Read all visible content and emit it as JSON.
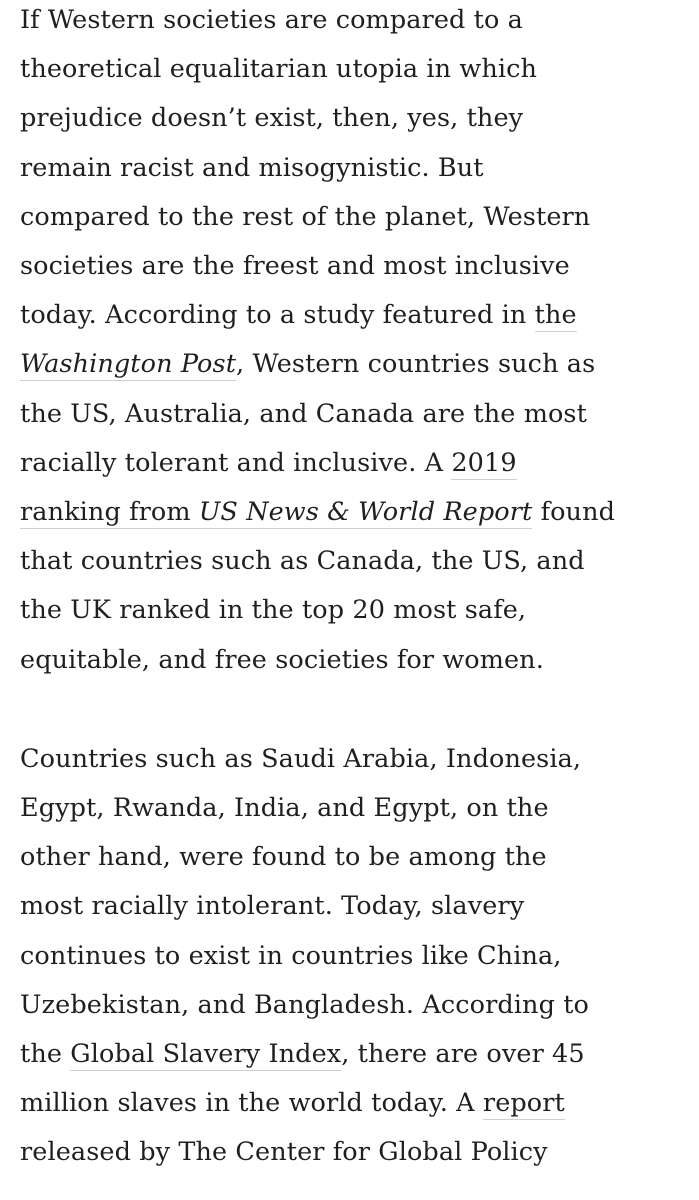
{
  "paragraphs": [
    {
      "lines": [
        [
          {
            "text": "If Western societies are compared to a"
          }
        ],
        [
          {
            "text": "theoretical equalitarian utopia in which"
          }
        ],
        [
          {
            "text": "prejudice doesn’t exist, then, yes, they"
          }
        ],
        [
          {
            "text": "remain racist and misogynistic. But"
          }
        ],
        [
          {
            "text": "compared to the rest of the planet, Western"
          }
        ],
        [
          {
            "text": "societies are the freest and most inclusive"
          }
        ],
        [
          {
            "text": "today. According to a study featured in "
          },
          {
            "text": "the",
            "link": true,
            "name": "link-washington-post"
          }
        ],
        [
          {
            "text": "Washington Post",
            "link": true,
            "italic": true,
            "name": "link-washington-post"
          },
          {
            "text": ", Western countries such as"
          }
        ],
        [
          {
            "text": "the US, Australia, and Canada are the most"
          }
        ],
        [
          {
            "text": "racially tolerant and inclusive. A "
          },
          {
            "text": "2019",
            "link": true,
            "name": "link-2019-ranking"
          }
        ],
        [
          {
            "text": "ranking from ",
            "link": true,
            "name": "link-2019-ranking"
          },
          {
            "text": "US News & World Report",
            "link": true,
            "italic": true,
            "name": "link-2019-ranking"
          },
          {
            "text": " found"
          }
        ],
        [
          {
            "text": "that countries such as Canada, the US, and"
          }
        ],
        [
          {
            "text": "the UK ranked in the top 20 most safe,"
          }
        ],
        [
          {
            "text": "equitable, and free societies for women."
          }
        ]
      ]
    },
    {
      "lines": [
        [
          {
            "text": "Countries such as Saudi Arabia, Indonesia,"
          }
        ],
        [
          {
            "text": "Egypt, Rwanda, India, and Egypt, on the"
          }
        ],
        [
          {
            "text": "other hand, were found to be among the"
          }
        ],
        [
          {
            "text": "most racially intolerant. Today, slavery"
          }
        ],
        [
          {
            "text": "continues to exist in countries like China,"
          }
        ],
        [
          {
            "text": "Uzebekistan, and Bangladesh. According to"
          }
        ],
        [
          {
            "text": "the "
          },
          {
            "text": "Global Slavery Index",
            "link": true,
            "name": "link-global-slavery-index"
          },
          {
            "text": ", there are over 45"
          }
        ],
        [
          {
            "text": "million slaves in the world today. A "
          },
          {
            "text": "report",
            "link": true,
            "name": "link-report"
          }
        ],
        [
          {
            "text": "released by The Center for Global Policy"
          }
        ]
      ]
    }
  ],
  "colors": {
    "text": "#1f1f1f",
    "link_underline": "#cfcfcf",
    "background": "#ffffff"
  }
}
